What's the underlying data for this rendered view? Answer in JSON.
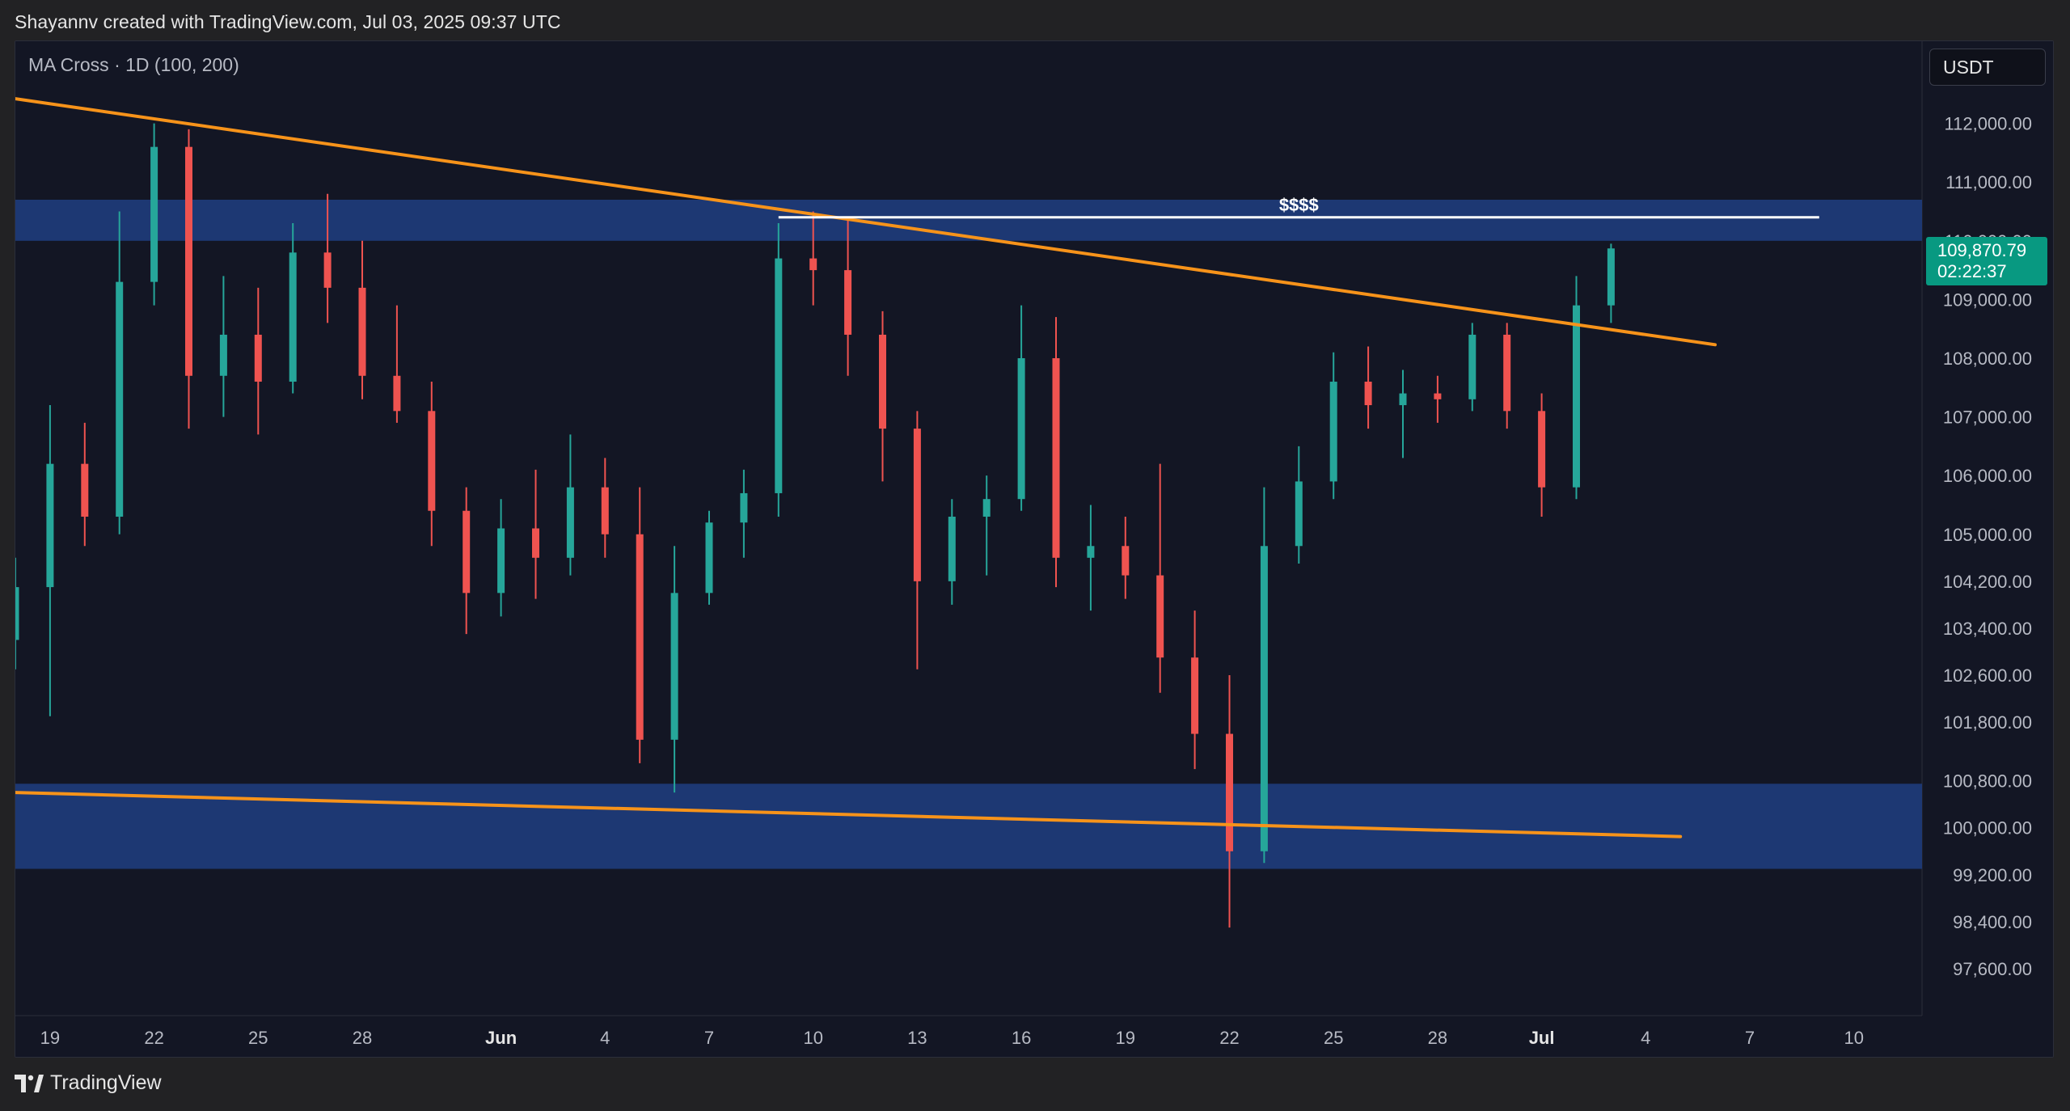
{
  "header": {
    "caption": "Shayannv created with TradingView.com, Jul 03, 2025 09:37 UTC"
  },
  "footer": {
    "brand": "TradingView"
  },
  "colors": {
    "background": "#131624",
    "up": "#26a69a",
    "down": "#ef5350",
    "trendline": "#f7931a",
    "zone": "#1e3a78",
    "liquidity_line": "#ffffff",
    "last_price_tag": "#089981"
  },
  "chart_data": {
    "type": "candlestick",
    "symbol_currency": "USDT",
    "indicator": "MA Cross · 1D (100, 200)",
    "ylim": [
      96800,
      113400
    ],
    "y_ticks": [
      "112,000.00",
      "111,000.00",
      "110,000.00",
      "109,000.00",
      "108,000.00",
      "107,000.00",
      "106,000.00",
      "105,000.00",
      "104,200.00",
      "103,400.00",
      "102,600.00",
      "101,800.00",
      "100,800.00",
      "100,000.00",
      "99,200.00",
      "98,400.00",
      "97,600.00"
    ],
    "x_ticks": [
      "19",
      "22",
      "25",
      "28",
      "Jun",
      "4",
      "7",
      "10",
      "13",
      "16",
      "19",
      "22",
      "25",
      "28",
      "Jul",
      "4",
      "7",
      "10"
    ],
    "last_price": {
      "value": "109,870.79",
      "countdown": "02:22:37"
    },
    "zones": [
      {
        "name": "supply-zone",
        "from": 110000,
        "to": 110700
      },
      {
        "name": "demand-zone",
        "from": 99300,
        "to": 100750
      }
    ],
    "trendlines": [
      {
        "name": "descending-resistance",
        "points": [
          [
            "May 18",
            112420
          ],
          [
            "Jul 06",
            108230
          ]
        ]
      },
      {
        "name": "lower-support",
        "points": [
          [
            "May 18",
            100600
          ],
          [
            "Jul 05",
            99850
          ]
        ]
      }
    ],
    "annotations": [
      {
        "label": "$$$$",
        "price": 110400,
        "from": "Jun 09",
        "to": "Jul 09"
      }
    ],
    "candles": [
      [
        "May 18",
        103200,
        104600,
        102700,
        104100
      ],
      [
        "May 19",
        104100,
        107200,
        101900,
        106200
      ],
      [
        "May 20",
        106200,
        106900,
        104800,
        105300
      ],
      [
        "May 21",
        105300,
        110500,
        105000,
        109300
      ],
      [
        "May 22",
        109300,
        112000,
        108900,
        111600
      ],
      [
        "May 23",
        111600,
        111900,
        106800,
        107700
      ],
      [
        "May 24",
        107700,
        109400,
        107000,
        108400
      ],
      [
        "May 25",
        108400,
        109200,
        106700,
        107600
      ],
      [
        "May 26",
        107600,
        110300,
        107400,
        109800
      ],
      [
        "May 27",
        109800,
        110800,
        108600,
        109200
      ],
      [
        "May 28",
        109200,
        110000,
        107300,
        107700
      ],
      [
        "May 29",
        107700,
        108900,
        106900,
        107100
      ],
      [
        "May 30",
        107100,
        107600,
        104800,
        105400
      ],
      [
        "May 31",
        105400,
        105800,
        103300,
        104000
      ],
      [
        "Jun 01",
        104000,
        105600,
        103600,
        105100
      ],
      [
        "Jun 02",
        105100,
        106100,
        103900,
        104600
      ],
      [
        "Jun 03",
        104600,
        106700,
        104300,
        105800
      ],
      [
        "Jun 04",
        105800,
        106300,
        104600,
        105000
      ],
      [
        "Jun 05",
        105000,
        105800,
        101100,
        101500
      ],
      [
        "Jun 06",
        101500,
        104800,
        100600,
        104000
      ],
      [
        "Jun 07",
        104000,
        105400,
        103800,
        105200
      ],
      [
        "Jun 08",
        105200,
        106100,
        104600,
        105700
      ],
      [
        "Jun 09",
        105700,
        110300,
        105300,
        109700
      ],
      [
        "Jun 10",
        109700,
        110500,
        108900,
        109500
      ],
      [
        "Jun 11",
        109500,
        110400,
        107700,
        108400
      ],
      [
        "Jun 12",
        108400,
        108800,
        105900,
        106800
      ],
      [
        "Jun 13",
        106800,
        107100,
        102700,
        104200
      ],
      [
        "Jun 14",
        104200,
        105600,
        103800,
        105300
      ],
      [
        "Jun 15",
        105300,
        106000,
        104300,
        105600
      ],
      [
        "Jun 16",
        105600,
        108900,
        105400,
        108000
      ],
      [
        "Jun 17",
        108000,
        108700,
        104100,
        104600
      ],
      [
        "Jun 18",
        104600,
        105500,
        103700,
        104800
      ],
      [
        "Jun 19",
        104800,
        105300,
        103900,
        104300
      ],
      [
        "Jun 20",
        104300,
        106200,
        102300,
        102900
      ],
      [
        "Jun 21",
        102900,
        103700,
        101000,
        101600
      ],
      [
        "Jun 22",
        101600,
        102600,
        98300,
        99600
      ],
      [
        "Jun 23",
        99600,
        105800,
        99400,
        104800
      ],
      [
        "Jun 24",
        104800,
        106500,
        104500,
        105900
      ],
      [
        "Jun 25",
        105900,
        108100,
        105600,
        107600
      ],
      [
        "Jun 26",
        107600,
        108200,
        106800,
        107200
      ],
      [
        "Jun 27",
        107200,
        107800,
        106300,
        107400
      ],
      [
        "Jun 28",
        107400,
        107700,
        106900,
        107300
      ],
      [
        "Jun 29",
        107300,
        108600,
        107100,
        108400
      ],
      [
        "Jun 30",
        108400,
        108600,
        106800,
        107100
      ],
      [
        "Jul 01",
        107100,
        107400,
        105300,
        105800
      ],
      [
        "Jul 02",
        105800,
        109400,
        105600,
        108900
      ],
      [
        "Jul 03",
        108900,
        109950,
        108600,
        109870
      ]
    ]
  }
}
